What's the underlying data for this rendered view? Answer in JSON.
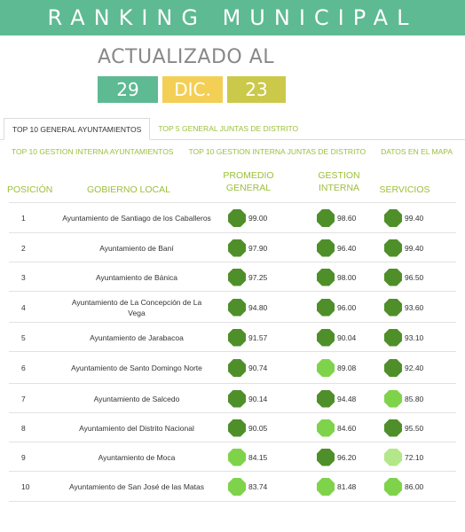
{
  "header": {
    "title": "RANKING MUNICIPAL"
  },
  "updated": {
    "label": "ACTUALIZADO AL",
    "day": "29",
    "month": "DIC.",
    "year": "23",
    "colors": {
      "day": "#5dba92",
      "month": "#f4cf55",
      "year": "#cbc94a"
    }
  },
  "tabs_primary": [
    {
      "label": "TOP 10 GENERAL AYUNTAMIENTOS",
      "active": true
    },
    {
      "label": "TOP 5 GENERAL JUNTAS DE DISTRITO",
      "active": false
    }
  ],
  "tabs_secondary": [
    {
      "label": "TOP 10 GESTION INTERNA AYUNTAMIENTOS"
    },
    {
      "label": "TOP 10 GESTION INTERNA JUNTAS DE DISTRITO"
    },
    {
      "label": "DATOS EN EL MAPA"
    }
  ],
  "table": {
    "headers": {
      "position": "POSICIÓN",
      "government": "GOBIERNO LOCAL",
      "average_line1": "PROMEDIO",
      "average_line2": "GENERAL",
      "internal_line1": "GESTION",
      "internal_line2": "INTERNA",
      "services": "SERVICIOS"
    },
    "score_colors": {
      "high": "#4f8f2a",
      "mid": "#7fd34b",
      "low": "#b3e78a"
    },
    "rows": [
      {
        "pos": "1",
        "gov": "Ayuntamiento de Santiago de los Caballeros",
        "avg": "99.00",
        "avg_level": "high",
        "int": "98.60",
        "int_level": "high",
        "srv": "99.40",
        "srv_level": "high"
      },
      {
        "pos": "2",
        "gov": "Ayuntamiento de Baní",
        "avg": "97.90",
        "avg_level": "high",
        "int": "96.40",
        "int_level": "high",
        "srv": "99.40",
        "srv_level": "high"
      },
      {
        "pos": "3",
        "gov": "Ayuntamiento de Bánica",
        "avg": "97.25",
        "avg_level": "high",
        "int": "98.00",
        "int_level": "high",
        "srv": "96.50",
        "srv_level": "high"
      },
      {
        "pos": "4",
        "gov": "Ayuntamiento de La Concepción de La Vega",
        "avg": "94.80",
        "avg_level": "high",
        "int": "96.00",
        "int_level": "high",
        "srv": "93.60",
        "srv_level": "high"
      },
      {
        "pos": "5",
        "gov": "Ayuntamiento de Jarabacoa",
        "avg": "91.57",
        "avg_level": "high",
        "int": "90.04",
        "int_level": "high",
        "srv": "93.10",
        "srv_level": "high"
      },
      {
        "pos": "6",
        "gov": "Ayuntamiento de Santo Domingo Norte",
        "avg": "90.74",
        "avg_level": "high",
        "int": "89.08",
        "int_level": "mid",
        "srv": "92.40",
        "srv_level": "high"
      },
      {
        "pos": "7",
        "gov": "Ayuntamiento de Salcedo",
        "avg": "90.14",
        "avg_level": "high",
        "int": "94.48",
        "int_level": "high",
        "srv": "85.80",
        "srv_level": "mid"
      },
      {
        "pos": "8",
        "gov": "Ayuntamiento del Distrito Nacional",
        "avg": "90.05",
        "avg_level": "high",
        "int": "84.60",
        "int_level": "mid",
        "srv": "95.50",
        "srv_level": "high"
      },
      {
        "pos": "9",
        "gov": "Ayuntamiento de Moca",
        "avg": "84.15",
        "avg_level": "mid",
        "int": "96.20",
        "int_level": "high",
        "srv": "72.10",
        "srv_level": "low"
      },
      {
        "pos": "10",
        "gov": "Ayuntamiento de San José de las Matas",
        "avg": "83.74",
        "avg_level": "mid",
        "int": "81.48",
        "int_level": "mid",
        "srv": "86.00",
        "srv_level": "mid"
      }
    ]
  }
}
